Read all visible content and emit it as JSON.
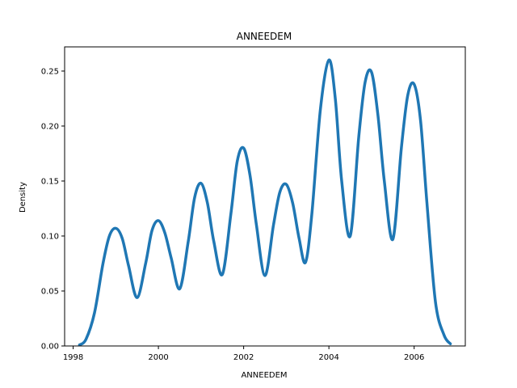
{
  "chart_data": {
    "type": "line",
    "title": "ANNEEDEM",
    "xlabel": "ANNEEDEM",
    "ylabel": "Density",
    "xlim": [
      1997.8,
      2007.2
    ],
    "ylim": [
      0.0,
      0.272
    ],
    "xticks": [
      1998,
      2000,
      2002,
      2004,
      2006
    ],
    "yticks": [
      0.0,
      0.05,
      0.1,
      0.15,
      0.2,
      0.25
    ],
    "ytick_labels": [
      "0.00",
      "0.05",
      "0.10",
      "0.15",
      "0.20",
      "0.25"
    ],
    "grid": false,
    "series": [
      {
        "color": "#1f77b4",
        "x": [
          1998.15,
          1998.3,
          1998.5,
          1998.7,
          1998.85,
          1999.0,
          1999.15,
          1999.3,
          1999.5,
          1999.7,
          1999.85,
          2000.0,
          2000.15,
          2000.3,
          2000.5,
          2000.7,
          2000.85,
          2001.0,
          2001.15,
          2001.3,
          2001.5,
          2001.7,
          2001.85,
          2002.0,
          2002.15,
          2002.3,
          2002.5,
          2002.7,
          2002.85,
          2003.0,
          2003.15,
          2003.3,
          2003.45,
          2003.6,
          2003.8,
          2004.0,
          2004.15,
          2004.3,
          2004.5,
          2004.7,
          2004.85,
          2005.0,
          2005.15,
          2005.3,
          2005.5,
          2005.7,
          2005.85,
          2006.0,
          2006.15,
          2006.3,
          2006.5,
          2006.7,
          2006.85
        ],
        "y": [
          0.001,
          0.006,
          0.03,
          0.075,
          0.1,
          0.107,
          0.098,
          0.073,
          0.044,
          0.075,
          0.105,
          0.114,
          0.103,
          0.08,
          0.052,
          0.095,
          0.135,
          0.148,
          0.13,
          0.095,
          0.065,
          0.12,
          0.168,
          0.18,
          0.155,
          0.11,
          0.064,
          0.11,
          0.14,
          0.147,
          0.13,
          0.098,
          0.076,
          0.12,
          0.215,
          0.26,
          0.225,
          0.15,
          0.1,
          0.19,
          0.24,
          0.249,
          0.21,
          0.15,
          0.097,
          0.18,
          0.228,
          0.238,
          0.205,
          0.13,
          0.04,
          0.01,
          0.002
        ]
      }
    ]
  }
}
